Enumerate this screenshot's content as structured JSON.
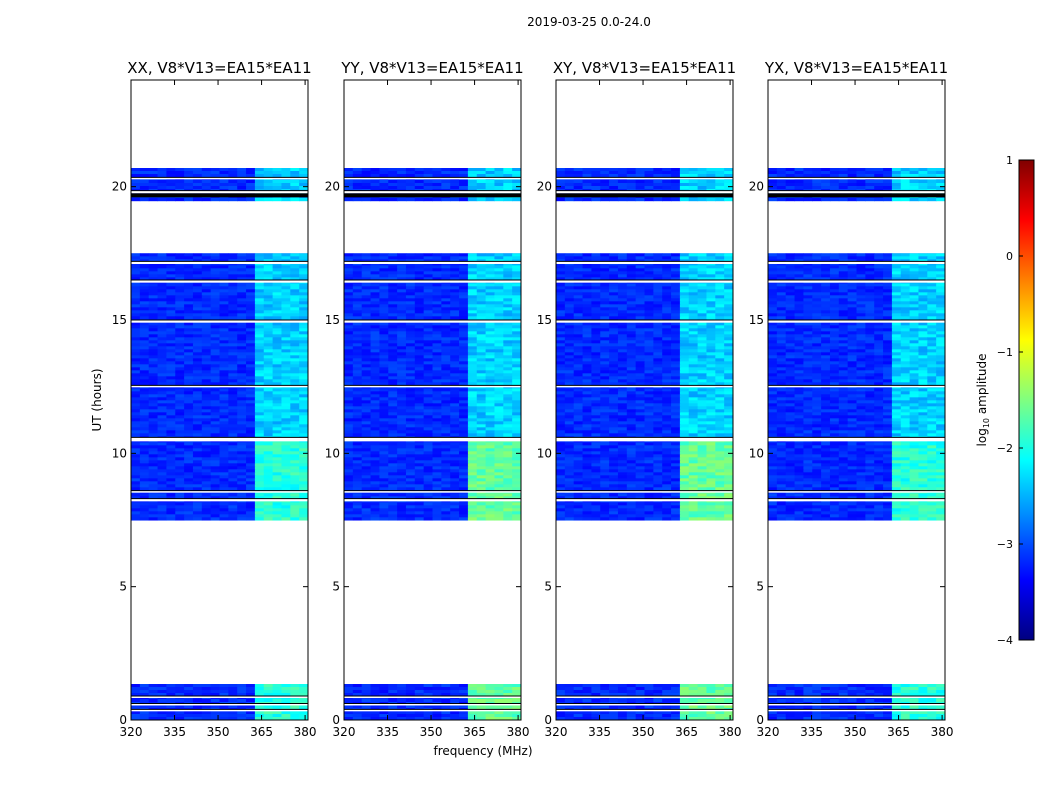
{
  "chart_data": {
    "type": "heatmap",
    "suptitle": "2019-03-25 0.0-24.0",
    "xlabel": "frequency (MHz)",
    "ylabel": "UT (hours)",
    "xlim": [
      320,
      381
    ],
    "ylim": [
      0,
      24
    ],
    "x_ticks": [
      320,
      335,
      350,
      365,
      380
    ],
    "y_ticks": [
      0,
      5,
      10,
      15,
      20
    ],
    "panels": [
      {
        "title": "XX, V8*V13=EA15*EA11"
      },
      {
        "title": "YY, V8*V13=EA15*EA11"
      },
      {
        "title": "XY, V8*V13=EA15*EA11"
      },
      {
        "title": "YX, V8*V13=EA15*EA11"
      }
    ],
    "data_intervals_ut": [
      [
        0.05,
        1.35
      ],
      [
        7.5,
        17.5
      ],
      [
        19.5,
        20.7
      ]
    ],
    "gap_bands_ut": [
      [
        0.35,
        0.4
      ],
      [
        0.55,
        0.62
      ],
      [
        0.85,
        0.9
      ],
      [
        8.2,
        8.3
      ],
      [
        8.55,
        8.6
      ],
      [
        10.45,
        10.6
      ],
      [
        12.5,
        12.55
      ],
      [
        14.9,
        15.0
      ],
      [
        16.4,
        16.5
      ],
      [
        17.1,
        17.2
      ],
      [
        19.75,
        19.85
      ],
      [
        20.3,
        20.35
      ]
    ],
    "bright_band_mhz": [
      363,
      380
    ],
    "colorbar": {
      "label": "log10 amplitude",
      "label_prefix": "log",
      "label_sub": "10",
      "label_suffix": " amplitude",
      "range": [
        -4,
        1
      ],
      "ticks": [
        -4,
        -3,
        -2,
        -1,
        0,
        1
      ],
      "tick_labels": [
        "−4",
        "−3",
        "−2",
        "−1",
        "0",
        "1"
      ],
      "colormap": "jet"
    }
  }
}
